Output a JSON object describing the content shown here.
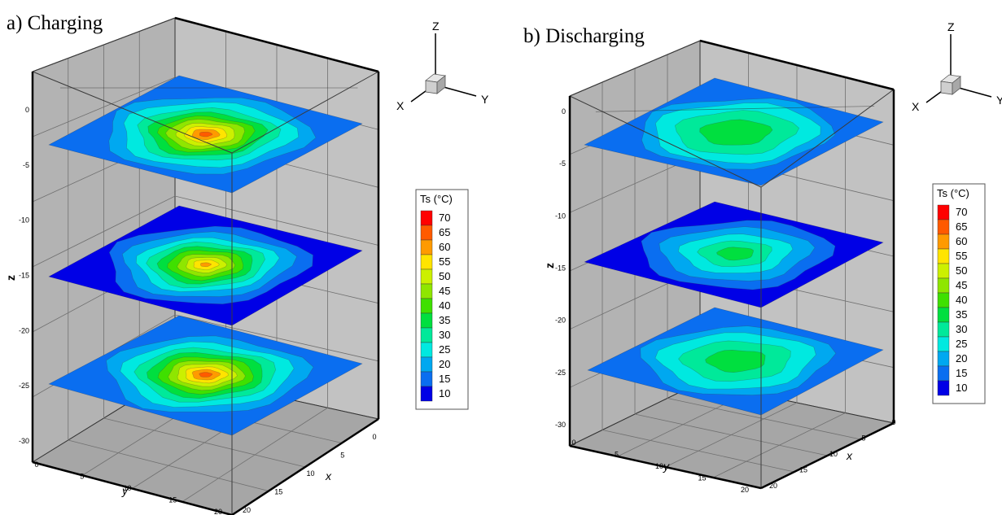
{
  "chart_data": [
    {
      "type": "heatmap",
      "title": "a) Charging",
      "xlabel": "x",
      "ylabel": "y",
      "zlabel": "z",
      "x_ticks": [
        "0",
        "5",
        "10",
        "15",
        "20"
      ],
      "y_ticks": [
        "0",
        "5",
        "10",
        "15",
        "20"
      ],
      "z_ticks": [
        "0",
        "-5",
        "-10",
        "-15",
        "-20",
        "-25",
        "-30"
      ],
      "xlim": [
        0,
        20
      ],
      "ylim": [
        0,
        20
      ],
      "zlim": [
        -30,
        0
      ],
      "slices": [
        {
          "z": -2.5,
          "min_temp": 15,
          "max_temp": 65,
          "hot_spot_temp": 65
        },
        {
          "z": -14,
          "min_temp": 10,
          "max_temp": 60,
          "hot_spot_temp": 60
        },
        {
          "z": -24.5,
          "min_temp": 15,
          "max_temp": 65,
          "hot_spot_temp": 65
        }
      ],
      "axes": [
        "X",
        "Y",
        "Z"
      ]
    },
    {
      "type": "heatmap",
      "title": "b) Discharging",
      "xlabel": "x",
      "ylabel": "y",
      "zlabel": "z",
      "x_ticks": [
        "0",
        "5",
        "10",
        "15",
        "20"
      ],
      "y_ticks": [
        "0",
        "5",
        "10",
        "15",
        "20"
      ],
      "z_ticks": [
        "0",
        "-5",
        "-10",
        "-15",
        "-20",
        "-25",
        "-30"
      ],
      "xlim": [
        0,
        20
      ],
      "ylim": [
        0,
        20
      ],
      "zlim": [
        -30,
        0
      ],
      "slices": [
        {
          "z": -2.5,
          "min_temp": 15,
          "max_temp": 35,
          "hot_spot_temp": 35
        },
        {
          "z": -14,
          "min_temp": 10,
          "max_temp": 35,
          "hot_spot_temp": 35
        },
        {
          "z": -24.5,
          "min_temp": 15,
          "max_temp": 35,
          "hot_spot_temp": 35
        }
      ],
      "axes": [
        "X",
        "Y",
        "Z"
      ]
    }
  ],
  "legend": {
    "title": "Ts (°C)",
    "levels": [
      {
        "label": "70",
        "color": "#ff0000"
      },
      {
        "label": "65",
        "color": "#ff5a00"
      },
      {
        "label": "60",
        "color": "#ff9a00"
      },
      {
        "label": "55",
        "color": "#ffe400"
      },
      {
        "label": "50",
        "color": "#ccf000"
      },
      {
        "label": "45",
        "color": "#8fe600"
      },
      {
        "label": "40",
        "color": "#3fe000"
      },
      {
        "label": "35",
        "color": "#00df3f"
      },
      {
        "label": "30",
        "color": "#00e99a"
      },
      {
        "label": "25",
        "color": "#00e9e0"
      },
      {
        "label": "20",
        "color": "#00a8f0"
      },
      {
        "label": "15",
        "color": "#0a6ef0"
      },
      {
        "label": "10",
        "color": "#0000e6"
      }
    ]
  }
}
